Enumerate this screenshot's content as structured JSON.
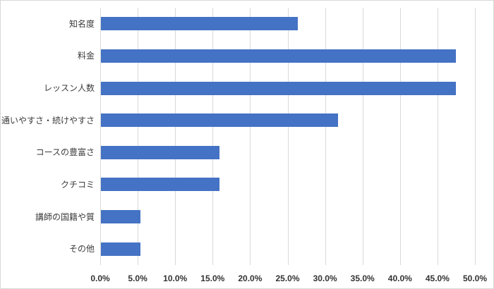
{
  "chart_data": {
    "type": "bar",
    "orientation": "horizontal",
    "title": "",
    "categories": [
      "知名度",
      "料金",
      "レッスン人数",
      "通いやすさ・続けやすさ",
      "コースの豊富さ",
      "クチコミ",
      "講師の国籍や質",
      "その他"
    ],
    "values": [
      26.3,
      47.4,
      47.4,
      31.6,
      15.8,
      15.8,
      5.3,
      5.3
    ],
    "unit": "%",
    "xlabel": "",
    "ylabel": "",
    "xlim": [
      0,
      50
    ],
    "x_ticks": [
      0,
      5,
      10,
      15,
      20,
      25,
      30,
      35,
      40,
      45,
      50
    ],
    "x_tick_labels": [
      "0.0%",
      "5.0%",
      "10.0%",
      "15.0%",
      "20.0%",
      "25.0%",
      "30.0%",
      "35.0%",
      "40.0%",
      "45.0%",
      "50.0%"
    ],
    "grid": "vertical",
    "legend": "none",
    "colors": {
      "bar": "#4472C4",
      "gridline": "#D9D9D9",
      "axis_text": "#404040",
      "background": "#FFFFFF",
      "border": "#D9D9D9"
    }
  }
}
